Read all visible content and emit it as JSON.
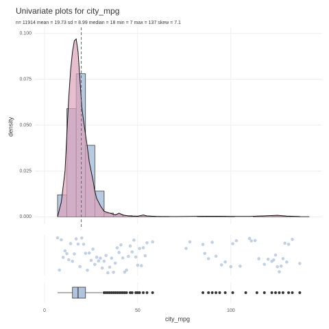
{
  "chart_data": [
    {
      "type": "histogram",
      "title": "Univariate plots for city_mpg",
      "subtitle": "n= 11914  mean = 19.73  sd = 8.99  median = 18  min = 7  max = 137  skew = 7.1",
      "ylabel": "density",
      "bins": [
        7,
        12,
        17,
        22,
        27,
        32,
        37,
        42,
        47,
        52,
        57,
        62,
        67,
        72,
        77,
        82,
        87,
        92,
        97,
        102,
        107,
        112,
        117,
        122,
        127,
        132,
        137,
        142
      ],
      "values": [
        0.012,
        0.059,
        0.078,
        0.039,
        0.014,
        0.002,
        0.0012,
        0.0006,
        0.0004,
        0.0003,
        0.0002,
        0.0001,
        0,
        0,
        0,
        0.0001,
        0.0002,
        0.0001,
        0.0001,
        0,
        0,
        0.0001,
        0.0001,
        0.0002,
        0.0002,
        0.0002,
        0.0001
      ],
      "color": "#b0c4de",
      "density": {
        "color": "#dba3b9",
        "x": [
          7,
          9,
          11,
          12,
          13,
          14,
          15,
          16,
          17,
          18,
          19,
          20,
          21,
          22,
          23,
          24,
          25,
          26,
          27,
          28,
          30,
          32,
          35,
          38,
          40,
          42,
          45,
          50,
          53,
          55,
          60,
          70,
          85,
          95,
          100,
          110,
          125,
          130,
          137
        ],
        "values": [
          0,
          0.008,
          0.025,
          0.045,
          0.065,
          0.08,
          0.09,
          0.096,
          0.097,
          0.09,
          0.075,
          0.06,
          0.052,
          0.045,
          0.038,
          0.03,
          0.025,
          0.02,
          0.014,
          0.01,
          0.006,
          0.003,
          0.002,
          0.001,
          0.002,
          0.001,
          0.0005,
          0.0003,
          0.001,
          0.0005,
          0.0002,
          0.0001,
          0.0003,
          0.0003,
          0.0002,
          0.0002,
          0.0008,
          0.0004,
          0.0001
        ]
      },
      "mean_line": 19.73,
      "xlim": [
        -5.5,
        149
      ],
      "xticks": [
        0,
        50,
        100
      ],
      "ylim": [
        -0.004,
        0.1033
      ],
      "yticks": [
        {
          "value": 0,
          "label": "0.000"
        },
        {
          "value": 0.025,
          "label": "0.025"
        },
        {
          "value": 0.05,
          "label": "0.050"
        },
        {
          "value": 0.075,
          "label": "0.075"
        },
        {
          "value": 0.1,
          "label": "0.100"
        }
      ],
      "grid": true
    },
    {
      "type": "strip",
      "color": "#b0c4de",
      "values": [
        7,
        8,
        9,
        10,
        11,
        12,
        13,
        14,
        15,
        16,
        17,
        18,
        19,
        20,
        21,
        22,
        23,
        24,
        25,
        26,
        27,
        28,
        29,
        30,
        31,
        32,
        33,
        34,
        35,
        36,
        37,
        38,
        39,
        40,
        41,
        42,
        43,
        44,
        45,
        46,
        47,
        48,
        49,
        50,
        51,
        52,
        53,
        54,
        55,
        58,
        76,
        78,
        85,
        86,
        88,
        90,
        92,
        95,
        97,
        100,
        101,
        103,
        105,
        110,
        111,
        113,
        115,
        118,
        120,
        122,
        123,
        124,
        125,
        126,
        127,
        128,
        129,
        130,
        131,
        133,
        137
      ],
      "xlim": [
        -5.5,
        149
      ],
      "xticks": [
        0,
        50,
        100
      ],
      "grid": true
    },
    {
      "type": "box",
      "color": "#b0c4de",
      "whisker_low": 7,
      "q1": 15,
      "median": 18,
      "q3": 22,
      "whisker_high": 31,
      "outliers": [
        32,
        33,
        34,
        35,
        36,
        37,
        38,
        39,
        40,
        41,
        42,
        43,
        44,
        46,
        47,
        49,
        50,
        51,
        53,
        55,
        58,
        85,
        88,
        90,
        92,
        94,
        97,
        101,
        108,
        114,
        118,
        122,
        124,
        126,
        128,
        131,
        133,
        137
      ],
      "xlabel": "city_mpg",
      "xlim": [
        -5.5,
        149
      ],
      "xticks": [
        0,
        50,
        100
      ],
      "grid": true
    }
  ]
}
